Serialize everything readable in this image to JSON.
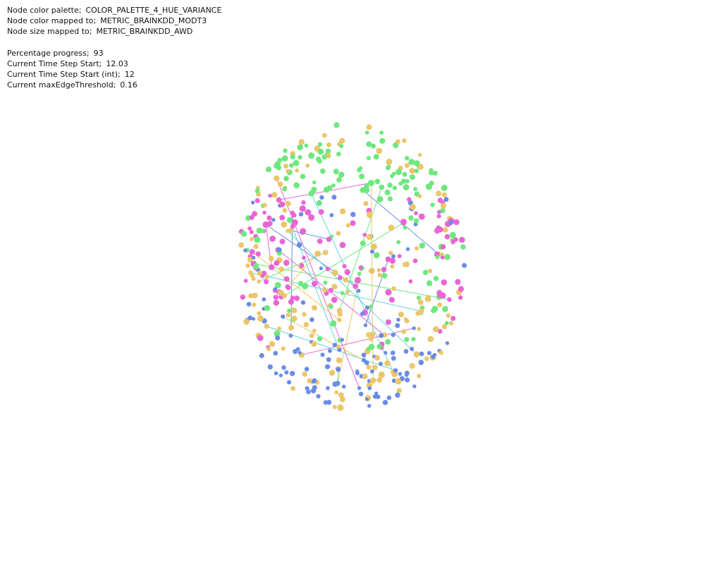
{
  "info": {
    "palette": {
      "label": "Node color palette;",
      "value": "COLOR_PALETTE_4_HUE_VARIANCE"
    },
    "color_metric": {
      "label": "Node color mapped to;",
      "value": "METRIC_BRAINKDD_MODT3"
    },
    "size_metric": {
      "label": "Node size mapped to;",
      "value": "METRIC_BRAINKDD_AWD"
    },
    "progress": {
      "label": "Percentage progress;",
      "value": "93"
    },
    "time_start": {
      "label": "Current Time Step Start;",
      "value": "12.03"
    },
    "time_start_int": {
      "label": "Current Time Step Start (int);",
      "value": "12"
    },
    "max_edge": {
      "label": "Current maxEdgeThreshold;",
      "value": "0.16"
    }
  },
  "palette_colors": {
    "green": "#6ee87e",
    "yellow": "#ebc66a",
    "magenta": "#e866d4",
    "blue": "#6a8be6"
  }
}
